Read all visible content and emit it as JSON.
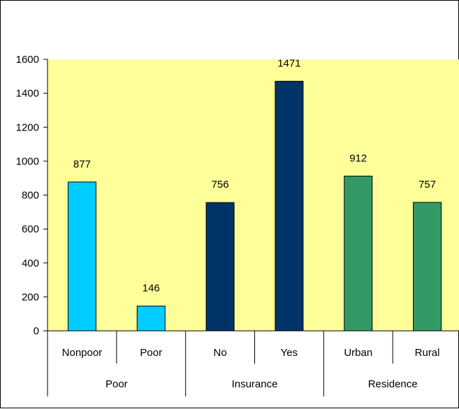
{
  "chart_data": {
    "type": "bar",
    "title": "",
    "xlabel": "",
    "ylabel": "",
    "ylim": [
      0,
      1600
    ],
    "yticks": [
      0,
      200,
      400,
      600,
      800,
      1000,
      1200,
      1400,
      1600
    ],
    "grid": false,
    "legend": "none",
    "plot_background": "#ffff99",
    "categories": [
      "Nonpoor",
      "Poor",
      "No",
      "Yes",
      "Urban",
      "Rural"
    ],
    "values": [
      877,
      146,
      756,
      1471,
      912,
      757
    ],
    "data_labels": [
      "877",
      "146",
      "756",
      "1471",
      "912",
      "757"
    ],
    "bar_colors": [
      "#00ccff",
      "#00ccff",
      "#003366",
      "#003366",
      "#339966",
      "#339966"
    ],
    "groups": [
      {
        "label": "Poor",
        "categories": [
          "Nonpoor",
          "Poor"
        ]
      },
      {
        "label": "Insurance",
        "categories": [
          "No",
          "Yes"
        ]
      },
      {
        "label": "Residence",
        "categories": [
          "Urban",
          "Rural"
        ]
      }
    ]
  }
}
